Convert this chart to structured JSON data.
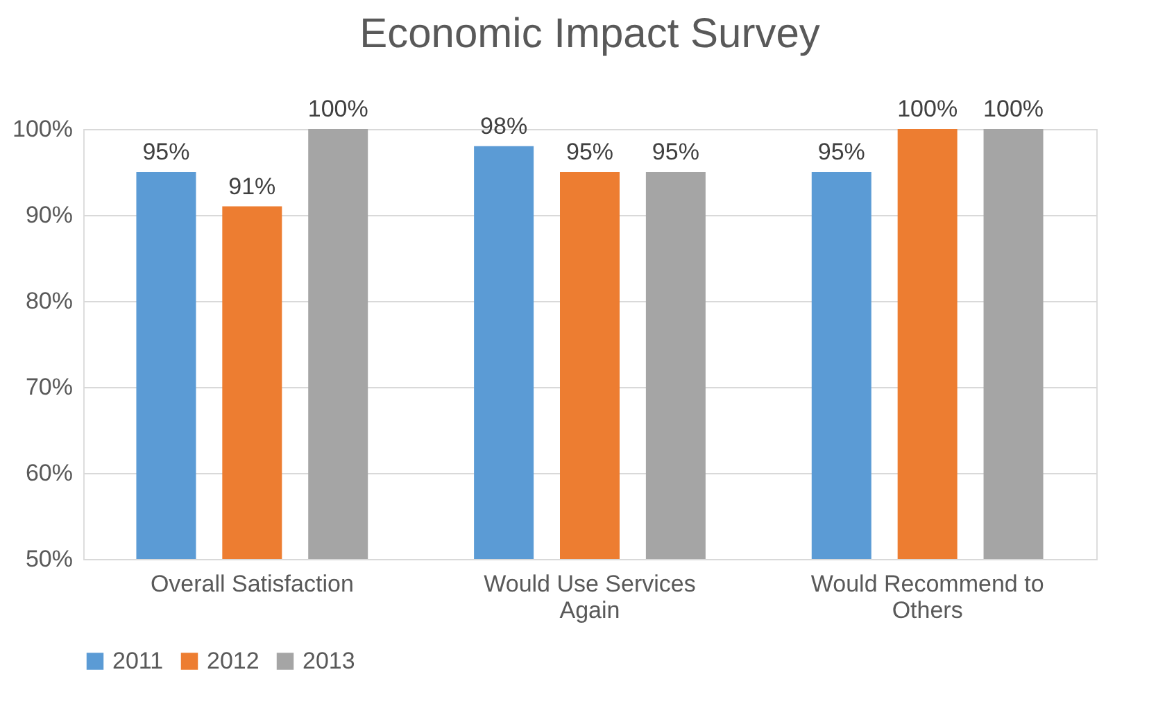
{
  "chart_data": {
    "type": "bar",
    "title": "Economic Impact Survey",
    "categories": [
      "Overall Satisfaction",
      "Would Use Services Again",
      "Would Recommend to Others"
    ],
    "series": [
      {
        "name": "2011",
        "color": "#5b9bd5",
        "values": [
          95,
          98,
          95
        ],
        "value_labels": [
          "95%",
          "98%",
          "95%"
        ]
      },
      {
        "name": "2012",
        "color": "#ed7d31",
        "values": [
          91,
          95,
          100
        ],
        "value_labels": [
          "91%",
          "95%",
          "100%"
        ]
      },
      {
        "name": "2013",
        "color": "#a5a5a5",
        "values": [
          100,
          95,
          100
        ],
        "value_labels": [
          "100%",
          "95%",
          "100%"
        ]
      }
    ],
    "ylim": [
      50,
      100
    ],
    "yticks": [
      {
        "value": 50,
        "label": "50%"
      },
      {
        "value": 60,
        "label": "60%"
      },
      {
        "value": 70,
        "label": "70%"
      },
      {
        "value": 80,
        "label": "80%"
      },
      {
        "value": 90,
        "label": "90%"
      },
      {
        "value": 100,
        "label": "100%"
      }
    ],
    "grid": "y",
    "legend": "bottom"
  }
}
